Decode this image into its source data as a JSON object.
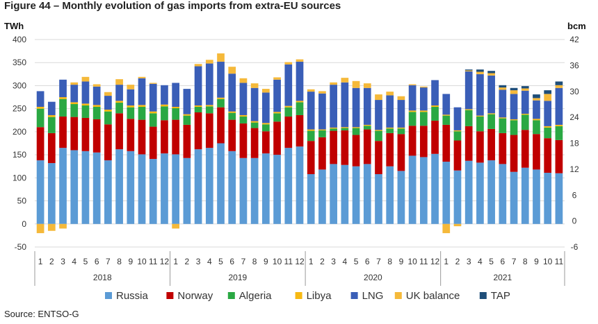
{
  "figure": {
    "title": "Figure 44 – Monthly evolution of gas imports from extra-EU sources",
    "source": "Source: ENTSO-G"
  },
  "colors": {
    "Russia": "#5b9bd5",
    "Norway": "#c00000",
    "Algeria": "#2aa843",
    "Libya": "#f7b913",
    "LNG": "#3a5eb7",
    "UK balance": "#f5b93a",
    "TAP": "#1f4e79",
    "grid": "#d9d9d9",
    "axis_text": "#333333"
  },
  "chart_data": {
    "type": "bar",
    "stacked": true,
    "title": "Monthly evolution of gas imports from extra-EU sources",
    "ylabel_left": "TWh",
    "ylabel_right": "bcm",
    "ylim": [
      -50,
      400
    ],
    "y_ticks": [
      -50,
      0,
      50,
      100,
      150,
      200,
      250,
      300,
      350,
      400
    ],
    "y2lim": [
      -6,
      42
    ],
    "y2_ticks": [
      -6,
      0,
      6,
      12,
      18,
      24,
      30,
      36,
      42
    ],
    "legend_position": "bottom",
    "years": [
      {
        "label": "2018",
        "months": [
          "1",
          "2",
          "3",
          "4",
          "5",
          "6",
          "7",
          "8",
          "9",
          "10",
          "11",
          "12"
        ]
      },
      {
        "label": "2019",
        "months": [
          "1",
          "2",
          "3",
          "4",
          "5",
          "6",
          "7",
          "8",
          "9",
          "10",
          "11",
          "12"
        ]
      },
      {
        "label": "2020",
        "months": [
          "1",
          "2",
          "3",
          "4",
          "5",
          "6",
          "7",
          "8",
          "9",
          "10",
          "11",
          "12"
        ]
      },
      {
        "label": "2021",
        "months": [
          "1",
          "2",
          "3",
          "4",
          "5",
          "6",
          "7",
          "8",
          "9",
          "10",
          "11"
        ]
      }
    ],
    "series": [
      {
        "name": "Russia",
        "values": [
          138,
          132,
          165,
          160,
          158,
          155,
          138,
          162,
          158,
          151,
          141,
          153,
          151,
          143,
          162,
          165,
          175,
          158,
          143,
          143,
          153,
          150,
          165,
          168,
          108,
          118,
          130,
          128,
          125,
          130,
          108,
          125,
          115,
          148,
          145,
          152,
          135,
          116,
          137,
          133,
          138,
          130,
          113,
          122,
          118,
          111,
          110
        ]
      },
      {
        "name": "Norway",
        "values": [
          72,
          65,
          68,
          72,
          72,
          72,
          78,
          78,
          70,
          75,
          70,
          72,
          75,
          72,
          80,
          75,
          78,
          68,
          75,
          65,
          48,
          72,
          68,
          68,
          72,
          70,
          72,
          75,
          68,
          75,
          72,
          72,
          80,
          65,
          68,
          72,
          80,
          65,
          75,
          68,
          68,
          67,
          80,
          82,
          77,
          75,
          72
        ]
      },
      {
        "name": "Algeria",
        "values": [
          40,
          35,
          38,
          28,
          27,
          27,
          28,
          23,
          25,
          28,
          29,
          30,
          25,
          20,
          12,
          15,
          18,
          15,
          15,
          12,
          15,
          18,
          20,
          28,
          22,
          15,
          5,
          5,
          15,
          8,
          22,
          10,
          12,
          30,
          30,
          30,
          20,
          20,
          35,
          32,
          32,
          32,
          32,
          33,
          30,
          23,
          30
        ]
      },
      {
        "name": "Libya",
        "values": [
          4,
          4,
          4,
          4,
          4,
          4,
          4,
          4,
          4,
          4,
          4,
          4,
          3,
          3,
          3,
          3,
          3,
          3,
          3,
          3,
          3,
          3,
          3,
          3,
          3,
          2,
          2,
          2,
          2,
          2,
          2,
          2,
          2,
          3,
          3,
          3,
          2,
          2,
          2,
          2,
          2,
          2,
          2,
          2,
          3,
          3,
          3
        ]
      },
      {
        "name": "LNG",
        "values": [
          34,
          29,
          38,
          38,
          48,
          40,
          30,
          35,
          35,
          58,
          60,
          42,
          52,
          55,
          85,
          90,
          78,
          82,
          70,
          72,
          66,
          70,
          90,
          85,
          82,
          78,
          93,
          97,
          85,
          80,
          65,
          70,
          60,
          55,
          50,
          55,
          45,
          50,
          82,
          90,
          82,
          60,
          55,
          50,
          40,
          55,
          80
        ]
      },
      {
        "name": "UK balance",
        "values": [
          -20,
          -15,
          -10,
          5,
          10,
          5,
          8,
          12,
          10,
          3,
          2,
          0,
          -10,
          0,
          5,
          8,
          18,
          15,
          10,
          10,
          8,
          5,
          5,
          5,
          5,
          5,
          5,
          10,
          15,
          10,
          12,
          8,
          8,
          2,
          2,
          0,
          -20,
          -5,
          2,
          5,
          5,
          5,
          8,
          5,
          5,
          15,
          6
        ]
      },
      {
        "name": "TAP",
        "values": [
          0,
          0,
          0,
          0,
          0,
          0,
          0,
          0,
          0,
          0,
          0,
          0,
          0,
          0,
          0,
          0,
          0,
          0,
          0,
          0,
          0,
          0,
          0,
          0,
          0,
          0,
          0,
          0,
          0,
          0,
          0,
          0,
          0,
          0,
          0,
          0,
          0,
          0,
          2,
          5,
          5,
          5,
          5,
          5,
          8,
          8,
          8
        ]
      }
    ]
  }
}
